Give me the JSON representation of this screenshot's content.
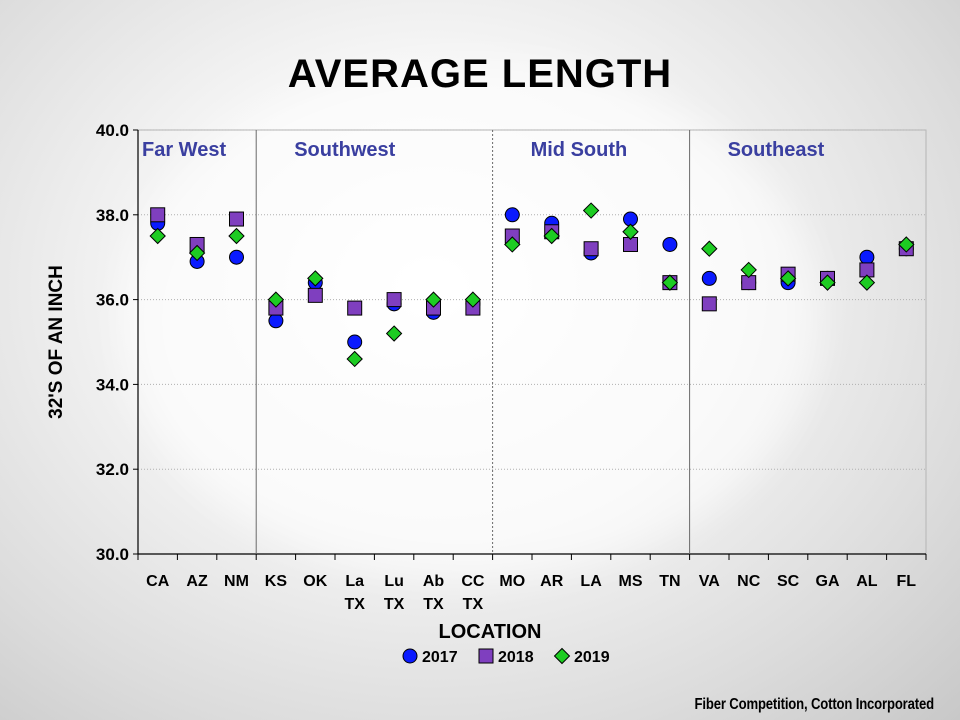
{
  "title": "AVERAGE LENGTH",
  "credit": "Fiber Competition, Cotton Incorporated",
  "colors": {
    "2017": "#0a1aff",
    "2018": "#7f3fbf",
    "2019": "#1dcc22",
    "region_label": "#3a3fa0"
  },
  "chart_data": {
    "type": "scatter",
    "title": "AVERAGE LENGTH",
    "xlabel": "LOCATION",
    "ylabel": "32'S OF AN INCH",
    "ylim": [
      30.0,
      40.0
    ],
    "yticks": [
      "30.0",
      "32.0",
      "34.0",
      "36.0",
      "38.0",
      "40.0"
    ],
    "grid": true,
    "legend_position": "bottom",
    "categories": [
      [
        "CA"
      ],
      [
        "AZ"
      ],
      [
        "NM"
      ],
      [
        "KS"
      ],
      [
        "OK"
      ],
      [
        "La",
        "TX"
      ],
      [
        "Lu",
        "TX"
      ],
      [
        "Ab",
        "TX"
      ],
      [
        "CC",
        "TX"
      ],
      [
        "MO"
      ],
      [
        "AR"
      ],
      [
        "LA"
      ],
      [
        "MS"
      ],
      [
        "TN"
      ],
      [
        "VA"
      ],
      [
        "NC"
      ],
      [
        "SC"
      ],
      [
        "GA"
      ],
      [
        "AL"
      ],
      [
        "FL"
      ]
    ],
    "regions": [
      {
        "label": "Far West",
        "start": 0,
        "end": 2
      },
      {
        "label": "Southwest",
        "start": 3,
        "end": 8
      },
      {
        "label": "Mid South",
        "start": 9,
        "end": 13
      },
      {
        "label": "Southeast",
        "start": 14,
        "end": 19
      }
    ],
    "series": [
      {
        "name": "2017",
        "marker": "circle",
        "values": [
          37.8,
          36.9,
          37.0,
          35.5,
          36.4,
          35.0,
          35.9,
          35.7,
          35.9,
          38.0,
          37.8,
          37.1,
          37.9,
          37.3,
          36.5,
          36.4,
          36.4,
          36.5,
          37.0,
          37.2
        ]
      },
      {
        "name": "2018",
        "marker": "square",
        "values": [
          38.0,
          37.3,
          37.9,
          35.8,
          36.1,
          35.8,
          36.0,
          35.8,
          35.8,
          37.5,
          37.6,
          37.2,
          37.3,
          36.4,
          35.9,
          36.4,
          36.6,
          36.5,
          36.7,
          37.2
        ]
      },
      {
        "name": "2019",
        "marker": "diamond",
        "values": [
          37.5,
          37.1,
          37.5,
          36.0,
          36.5,
          34.6,
          35.2,
          36.0,
          36.0,
          37.3,
          37.5,
          38.1,
          37.6,
          36.4,
          37.2,
          36.7,
          36.5,
          36.4,
          36.4,
          37.3
        ]
      }
    ]
  }
}
